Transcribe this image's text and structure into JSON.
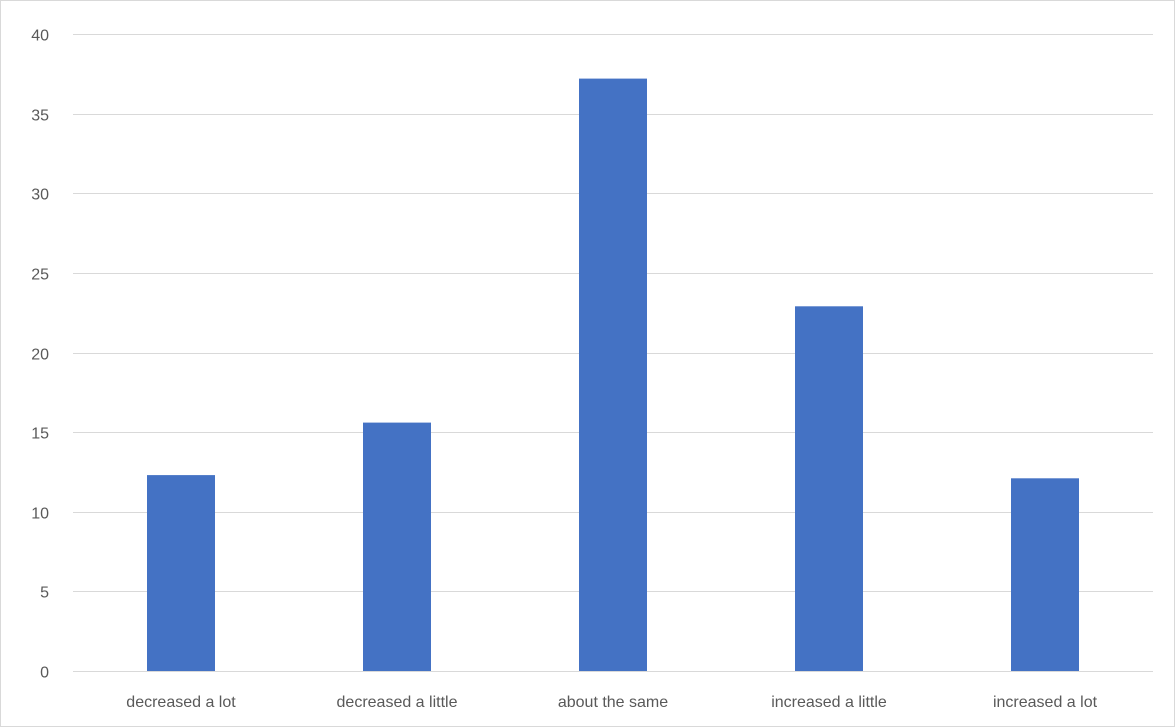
{
  "chart_data": {
    "type": "bar",
    "title": "",
    "xlabel": "",
    "ylabel": "",
    "categories": [
      "decreased a lot",
      "decreased a little",
      "about the same",
      "increased a little",
      "increased a lot"
    ],
    "values": [
      12.3,
      15.6,
      37.2,
      22.9,
      12.1
    ],
    "ylim": [
      0,
      40
    ],
    "yticks": [
      "0",
      "5",
      "10",
      "15",
      "20",
      "25",
      "30",
      "35",
      "40"
    ],
    "grid": true,
    "legend": "none",
    "bar_color": "#4472C4"
  }
}
